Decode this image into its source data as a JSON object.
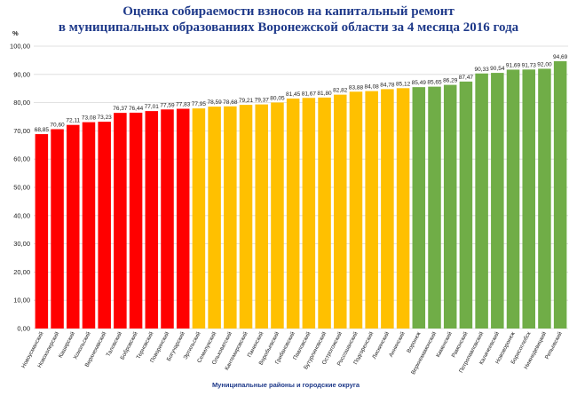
{
  "chart_data": {
    "type": "bar",
    "title_lines": [
      "Оценка собираемости взносов на капитальный ремонт",
      "в муниципальных образованиях Воронежской области за 4 месяца 2016 года"
    ],
    "xlabel": "Муниципальные районы и городские округа",
    "ylabel": "",
    "unit": "%",
    "ylim": [
      0,
      100
    ],
    "ytick_step": 10,
    "grid": true,
    "categories": [
      "Новоусманский",
      "Новохоперский",
      "Каширский",
      "Хохольский",
      "Верхнехавский",
      "Таловский",
      "Бобровский",
      "Терновский",
      "Поворинский",
      "Богучарский",
      "Эртильский",
      "Семилукский",
      "Ольховатский",
      "Кантемировский",
      "Панинский",
      "Воробьевский",
      "Грибановский",
      "Павловский",
      "Бутурлиновский",
      "Острогожский",
      "Россошанский",
      "Подгоренский",
      "Лискинский",
      "Аннинский",
      "Воронеж",
      "Верхнемамонский",
      "Каменский",
      "Рамонский",
      "Петропавловский",
      "Калачеевский",
      "Нововоронеж",
      "Борисоглебск",
      "Нижнедевицкий",
      "Репьевский"
    ],
    "values": [
      68.85,
      70.6,
      72.11,
      73.08,
      73.23,
      76.37,
      76.44,
      77.01,
      77.59,
      77.83,
      77.95,
      78.59,
      78.68,
      79.21,
      79.37,
      80.05,
      81.45,
      81.67,
      81.8,
      82.82,
      83.88,
      84.08,
      84.78,
      85.12,
      85.49,
      85.65,
      86.29,
      87.47,
      90.33,
      90.54,
      91.69,
      91.73,
      92.0,
      94.69
    ],
    "value_labels": [
      "68,85",
      "70,60",
      "72,11",
      "73,08",
      "73,23",
      "76,37",
      "76,44",
      "77,01",
      "77,59",
      "77,83",
      "77,95",
      "78,59",
      "78,68",
      "79,21",
      "79,37",
      "80,05",
      "81,45",
      "81,67",
      "81,80",
      "82,82",
      "83,88",
      "84,08",
      "84,78",
      "85,12",
      "85,49",
      "85,65",
      "86,29",
      "87,47",
      "90,33",
      "90,54",
      "91,69",
      "91,73",
      "92,00",
      "94,69"
    ],
    "ytick_labels": [
      "0,00",
      "10,00",
      "20,00",
      "30,00",
      "40,00",
      "50,00",
      "60,00",
      "70,00",
      "80,00",
      "90,00",
      "100,00"
    ],
    "bar_groups": [
      "red",
      "red",
      "red",
      "red",
      "red",
      "red",
      "red",
      "red",
      "red",
      "red",
      "yellow",
      "yellow",
      "yellow",
      "yellow",
      "yellow",
      "yellow",
      "yellow",
      "yellow",
      "yellow",
      "yellow",
      "yellow",
      "yellow",
      "yellow",
      "yellow",
      "green",
      "green",
      "green",
      "green",
      "green",
      "green",
      "green",
      "green",
      "green",
      "green"
    ],
    "colors": {
      "red": "#ff0000",
      "yellow": "#ffc000",
      "green": "#70ad47",
      "grid": "#d9d9d9",
      "title": "#1f3a8a"
    }
  }
}
